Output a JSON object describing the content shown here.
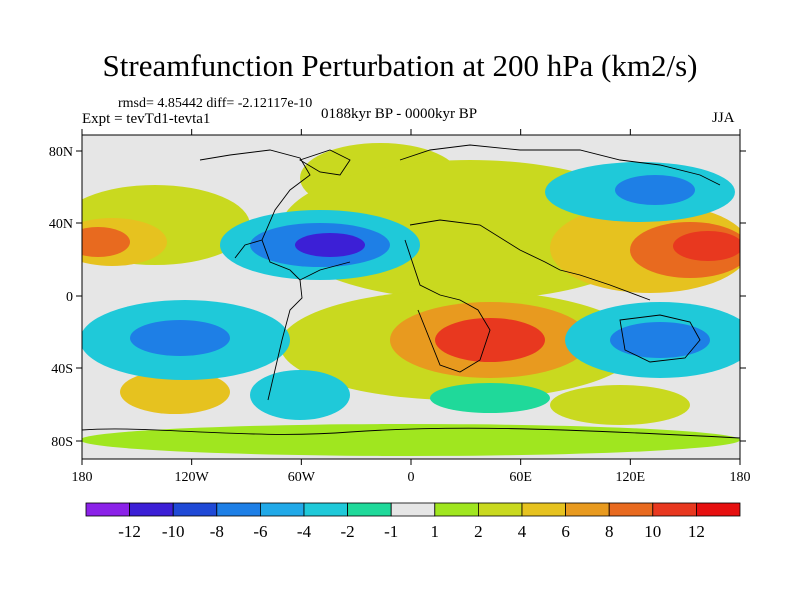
{
  "title": "Streamfunction Perturbation at 200 hPa (km2/s)",
  "stats": "rmsd= 4.85442 diff= -2.12117e-10",
  "expt": "Expt = tevTd1-tevta1",
  "period": "0188kyr BP - 0000kyr BP",
  "season": "JJA",
  "map": {
    "lat_ticks": [
      "80N",
      "40N",
      "0",
      "40S",
      "80S"
    ],
    "lon_ticks": [
      "180",
      "120W",
      "60W",
      "0",
      "60E",
      "120E",
      "180"
    ]
  },
  "colorbar": {
    "labels": [
      "-12",
      "-10",
      "-8",
      "-6",
      "-4",
      "-2",
      "-1",
      "1",
      "2",
      "4",
      "6",
      "8",
      "10",
      "12"
    ],
    "colors": [
      "#8b22e8",
      "#3c1fd6",
      "#1f49d6",
      "#1e7fe6",
      "#21a9e8",
      "#1fc9d9",
      "#1fd99a",
      "#e6e6e6",
      "#a0e61f",
      "#c9d91f",
      "#e6c21f",
      "#e89a1f",
      "#e86a1f",
      "#e8381f",
      "#e60f0f"
    ]
  },
  "colors": {
    "land_outline": "#000000",
    "background": "#ffffff"
  }
}
